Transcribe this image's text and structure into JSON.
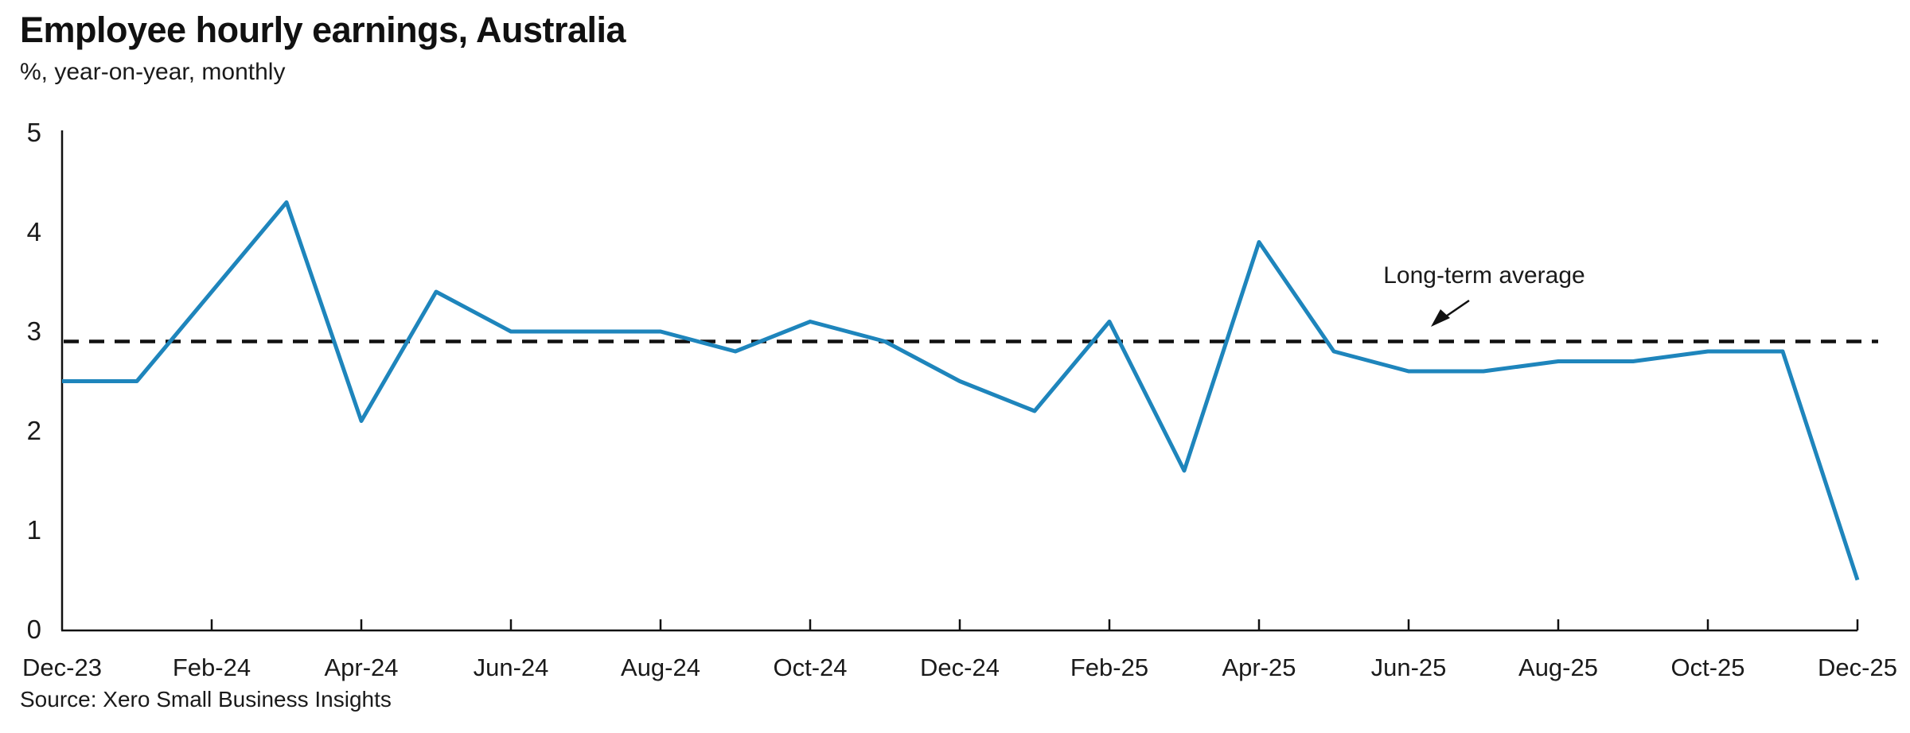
{
  "header": {
    "title": "Employee hourly earnings, Australia",
    "subtitle": "%, year-on-year, monthly"
  },
  "footer": {
    "source": "Source: Xero Small Business Insights"
  },
  "chart_data": {
    "type": "line",
    "title": "Employee hourly earnings, Australia",
    "subtitle": "%, year-on-year, monthly",
    "x": [
      "Dec-23",
      "Jan-24",
      "Feb-24",
      "Mar-24",
      "Apr-24",
      "May-24",
      "Jun-24",
      "Jul-24",
      "Aug-24",
      "Sep-24",
      "Oct-24",
      "Nov-24",
      "Dec-24",
      "Jan-25",
      "Feb-25",
      "Mar-25",
      "Apr-25",
      "May-25",
      "Jun-25",
      "Jul-25",
      "Aug-25",
      "Sep-25",
      "Oct-25",
      "Nov-25",
      "Dec-25"
    ],
    "values": [
      2.5,
      2.5,
      3.4,
      4.3,
      2.1,
      3.4,
      3.0,
      3.0,
      3.0,
      2.8,
      3.1,
      2.9,
      2.5,
      2.2,
      3.1,
      1.6,
      3.9,
      2.8,
      2.6,
      2.6,
      2.7,
      2.7,
      2.8,
      2.8,
      0.5
    ],
    "x_tick_labels": [
      "Dec-23",
      "Feb-24",
      "Apr-24",
      "Jun-24",
      "Aug-24",
      "Oct-24",
      "Dec-24",
      "Feb-25",
      "Apr-25",
      "Jun-25",
      "Aug-25",
      "Oct-25",
      "Dec-25"
    ],
    "x_tick_every": 2,
    "yticks": [
      0,
      1,
      2,
      3,
      4,
      5
    ],
    "ylim": [
      0,
      5
    ],
    "grid": false,
    "legend": "none",
    "reference_line": {
      "value": 2.9,
      "label": "Long-term average",
      "style": "dashed",
      "color": "#111111"
    },
    "line_color": "#1E85BC",
    "axis_color": "#111111"
  },
  "annotation": {
    "label": "Long-term average"
  }
}
